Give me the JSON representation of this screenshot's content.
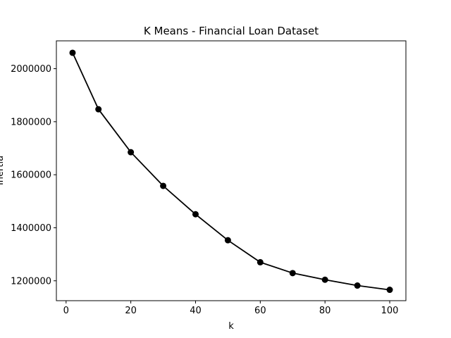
{
  "chart_data": {
    "type": "line",
    "title": "K Means - Financial Loan Dataset",
    "xlabel": "k",
    "ylabel": "Inertia",
    "x": [
      2,
      10,
      20,
      30,
      40,
      50,
      60,
      70,
      80,
      90,
      100
    ],
    "series": [
      {
        "values": [
          2060000,
          1847000,
          1685000,
          1558000,
          1451000,
          1353000,
          1270000,
          1229000,
          1204000,
          1182000,
          1166000
        ]
      }
    ],
    "xlim": [
      -3,
      105
    ],
    "ylim": [
      1125000,
      2105000
    ],
    "xticks": [
      0,
      20,
      40,
      60,
      80,
      100
    ],
    "yticks": [
      1200000,
      1400000,
      1600000,
      1800000,
      2000000
    ],
    "grid": false,
    "line_color": "#000000",
    "marker": "circle"
  }
}
